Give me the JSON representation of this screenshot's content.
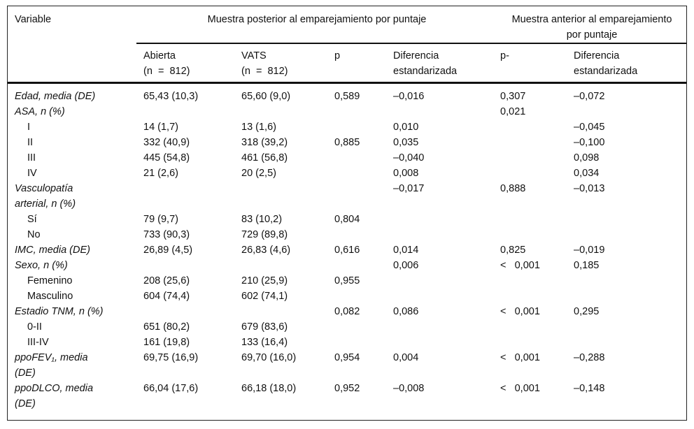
{
  "table": {
    "header": {
      "variable_label": "Variable",
      "group_posterior": "Muestra posterior al emparejamiento por puntaje",
      "group_anterior": "Muestra anterior al emparejamiento\npor puntaje",
      "cols": [
        "Abierta\n(n  =  812)",
        "VATS\n(n  =  812)",
        "p",
        "Diferencia\nestandarizada",
        "p-",
        "Diferencia\nestandarizada"
      ]
    },
    "rows": [
      {
        "label": "Edad, media (DE)",
        "italic": true,
        "indent": false,
        "cells": [
          "65,43 (10,3)",
          "65,60 (9,0)",
          "0,589",
          "–0,016",
          "0,307",
          "–0,072"
        ]
      },
      {
        "label": "ASA, n (%)",
        "italic": true,
        "indent": false,
        "cells": [
          "",
          "",
          "",
          "",
          "0,021",
          ""
        ]
      },
      {
        "label": "I",
        "italic": false,
        "indent": true,
        "cells": [
          "14 (1,7)",
          "13 (1,6)",
          "",
          "0,010",
          "",
          "–0,045"
        ]
      },
      {
        "label": "II",
        "italic": false,
        "indent": true,
        "cells": [
          "332 (40,9)",
          "318 (39,2)",
          "0,885",
          "0,035",
          "",
          "–0,100"
        ]
      },
      {
        "label": "III",
        "italic": false,
        "indent": true,
        "cells": [
          "445 (54,8)",
          "461 (56,8)",
          "",
          "–0,040",
          "",
          "0,098"
        ]
      },
      {
        "label": "IV",
        "italic": false,
        "indent": true,
        "cells": [
          "21 (2,6)",
          "20 (2,5)",
          "",
          "0,008",
          "",
          "0,034"
        ]
      },
      {
        "label": "Vasculopatía\narterial, n (%)",
        "italic": true,
        "indent": false,
        "cells": [
          "",
          "",
          "",
          "–0,017",
          "0,888",
          "–0,013"
        ]
      },
      {
        "label": "Sí",
        "italic": false,
        "indent": true,
        "cells": [
          "79 (9,7)",
          "83 (10,2)",
          "0,804",
          "",
          "",
          ""
        ]
      },
      {
        "label": "No",
        "italic": false,
        "indent": true,
        "cells": [
          "733 (90,3)",
          "729 (89,8)",
          "",
          "",
          "",
          ""
        ]
      },
      {
        "label": "IMC, media (DE)",
        "italic": true,
        "indent": false,
        "cells": [
          "26,89 (4,5)",
          "26,83 (4,6)",
          "0,616",
          "0,014",
          "0,825",
          "–0,019"
        ]
      },
      {
        "label": "Sexo, n (%)",
        "italic": true,
        "indent": false,
        "cells": [
          "",
          "",
          "",
          "0,006",
          "<   0,001",
          "0,185"
        ]
      },
      {
        "label": "Femenino",
        "italic": false,
        "indent": true,
        "cells": [
          "208 (25,6)",
          "210 (25,9)",
          "0,955",
          "",
          "",
          ""
        ]
      },
      {
        "label": "Masculino",
        "italic": false,
        "indent": true,
        "cells": [
          "604 (74,4)",
          "602 (74,1)",
          "",
          "",
          "",
          ""
        ]
      },
      {
        "label": "Estadio TNM, n (%)",
        "italic": true,
        "indent": false,
        "cells": [
          "",
          "",
          "0,082",
          "0,086",
          "<   0,001",
          "0,295"
        ]
      },
      {
        "label": "0-II",
        "italic": false,
        "indent": true,
        "cells": [
          "651 (80,2)",
          "679 (83,6)",
          "",
          "",
          "",
          ""
        ]
      },
      {
        "label": "III-IV",
        "italic": false,
        "indent": true,
        "cells": [
          "161 (19,8)",
          "133 (16,4)",
          "",
          "",
          "",
          ""
        ]
      },
      {
        "label": "ppoFEV₁, media\n(DE)",
        "italic": true,
        "indent": false,
        "cells": [
          "69,75 (16,9)",
          "69,70 (16,0)",
          "0,954",
          "0,004",
          "<   0,001",
          "–0,288"
        ]
      },
      {
        "label": "ppoDLCO, media\n(DE)",
        "italic": true,
        "indent": false,
        "cells": [
          "66,04 (17,6)",
          "66,18 (18,0)",
          "0,952",
          "–0,008",
          "<   0,001",
          "–0,148"
        ]
      }
    ],
    "column_keys": [
      "abierta",
      "vats",
      "p-posterior",
      "diferencia-estandarizada-posterior",
      "p-anterior",
      "diferencia-estandarizada-anterior"
    ]
  }
}
